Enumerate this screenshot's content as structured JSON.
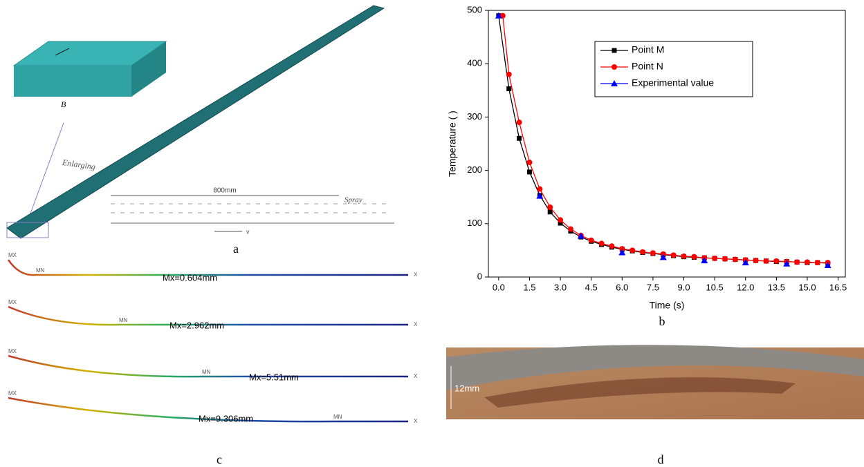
{
  "panel_a": {
    "caption": "a",
    "enlarging": "Enlarging",
    "marker": "B",
    "length": "800mm",
    "spray": "Spray",
    "direction": "v"
  },
  "panel_c": {
    "caption": "c",
    "max_label": "MX",
    "min_label": "MN",
    "axis_label": "X",
    "deflections": [
      "Mx=0.604mm",
      "Mx=2.962mm",
      "Mx=5.51mm",
      "Mx=9.306mm"
    ]
  },
  "panel_d": {
    "caption": "d",
    "thickness": "12mm"
  },
  "chart_data": {
    "type": "line",
    "caption": "b",
    "x_label": "Time (s)",
    "y_label": "Temperature ( )",
    "xlim": [
      -0.5,
      16.85
    ],
    "ylim": [
      0,
      500
    ],
    "xticks": [
      {
        "value": 0,
        "label": "0.0"
      },
      1.5,
      {
        "value": 3,
        "label": "3.0"
      },
      4.5,
      {
        "value": 6,
        "label": "6.0"
      },
      7.5,
      {
        "value": 9,
        "label": "9.0"
      },
      10.5,
      {
        "value": 12,
        "label": "12.0"
      },
      13.5,
      {
        "value": 15,
        "label": "15.0"
      },
      16.5
    ],
    "yticks": [
      0,
      100,
      200,
      300,
      400,
      500
    ],
    "series": [
      {
        "name": "Point M",
        "color": "#000000",
        "marker": "square",
        "line": true,
        "x": [
          0,
          0.5,
          1,
          1.5,
          2,
          2.5,
          3,
          3.5,
          4,
          4.5,
          5,
          5.5,
          6,
          6.5,
          7,
          7.5,
          8,
          8.5,
          9,
          9.5,
          10,
          10.5,
          11,
          11.5,
          12,
          12.5,
          13,
          13.5,
          14,
          14.5,
          15,
          15.5,
          16
        ],
        "values": [
          490,
          353,
          260,
          197,
          153,
          122,
          101,
          86,
          75,
          67,
          61,
          56,
          52,
          49,
          46,
          44,
          42,
          40,
          38,
          37,
          36,
          35,
          34,
          33,
          32,
          31,
          30,
          29,
          29,
          28,
          27,
          27,
          26
        ]
      },
      {
        "name": "Point N",
        "color": "#ff0000",
        "marker": "circle",
        "line": true,
        "x": [
          0.2,
          0.5,
          1,
          1.5,
          2,
          2.5,
          3,
          3.5,
          4,
          4.5,
          5,
          5.5,
          6,
          6.5,
          7,
          7.5,
          8,
          8.5,
          9,
          9.5,
          10,
          10.5,
          11,
          11.5,
          12,
          12.5,
          13,
          13.5,
          14,
          14.5,
          15,
          15.5,
          16
        ],
        "values": [
          490,
          380,
          290,
          215,
          165,
          131,
          107,
          90,
          78,
          69,
          63,
          58,
          53,
          50,
          47,
          45,
          43,
          41,
          39,
          38,
          36,
          35,
          34,
          33,
          32,
          31,
          30,
          30,
          29,
          28,
          28,
          27,
          27
        ]
      },
      {
        "name": "Experimental value",
        "color": "#0000ff",
        "marker": "triangle",
        "line": false,
        "x": [
          0,
          2,
          4,
          6,
          8,
          10,
          12,
          14,
          16
        ],
        "values": [
          490,
          152,
          77,
          46,
          37,
          31,
          27,
          25,
          22
        ]
      }
    ]
  }
}
